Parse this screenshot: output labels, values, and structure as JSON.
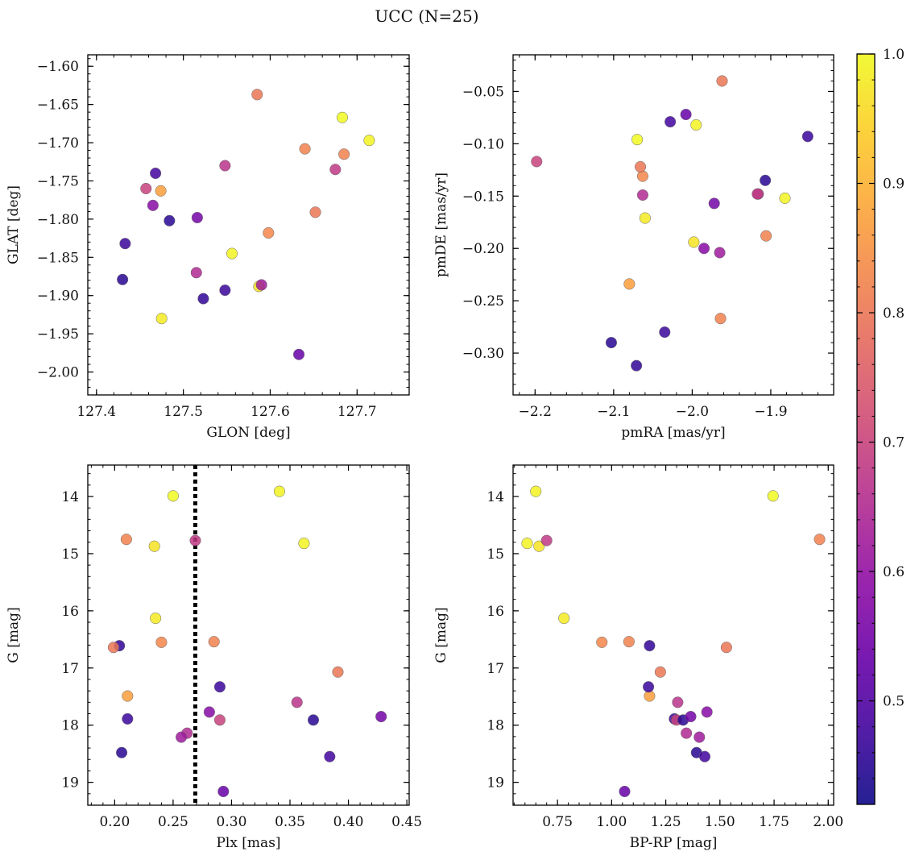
{
  "figure": {
    "title": "UCC (N=25)"
  },
  "colorbar": {
    "colormap": "plasma",
    "vmin": 0.42,
    "vmax": 1.0,
    "ticks": [
      0.5,
      0.6,
      0.7,
      0.8,
      0.9,
      1.0
    ],
    "tick_labels": [
      "0.5",
      "0.6",
      "0.7",
      "0.8",
      "0.9",
      "1.0"
    ]
  },
  "stars": [
    {
      "glon": 127.43,
      "glat": -1.879,
      "pmra": -2.103,
      "pmde": -0.29,
      "plx": 0.206,
      "g": 18.48,
      "bprp": 1.392,
      "prob": 0.45
    },
    {
      "glon": 127.433,
      "glat": -1.832,
      "pmra": -1.853,
      "pmde": -0.093,
      "plx": 0.211,
      "g": 17.89,
      "bprp": 1.29,
      "prob": 0.47
    },
    {
      "glon": 127.457,
      "glat": -1.76,
      "pmra": -2.198,
      "pmde": -0.117,
      "plx": 0.29,
      "g": 17.91,
      "bprp": 1.3,
      "prob": 0.7
    },
    {
      "glon": 127.465,
      "glat": -1.782,
      "pmra": -1.985,
      "pmde": -0.2,
      "plx": 0.281,
      "g": 17.77,
      "bprp": 1.44,
      "prob": 0.58
    },
    {
      "glon": 127.468,
      "glat": -1.74,
      "pmra": -2.028,
      "pmde": -0.079,
      "plx": 0.384,
      "g": 18.55,
      "bprp": 1.43,
      "prob": 0.48
    },
    {
      "glon": 127.474,
      "glat": -1.763,
      "pmra": -2.08,
      "pmde": -0.234,
      "plx": 0.211,
      "g": 17.49,
      "bprp": 1.175,
      "prob": 0.87
    },
    {
      "glon": 127.475,
      "glat": -1.93,
      "pmra": -2.06,
      "pmde": -0.171,
      "plx": 0.235,
      "g": 16.13,
      "bprp": 0.78,
      "prob": 0.98
    },
    {
      "glon": 127.484,
      "glat": -1.802,
      "pmra": -1.907,
      "pmde": -0.135,
      "plx": 0.37,
      "g": 17.91,
      "bprp": 1.33,
      "prob": 0.45
    },
    {
      "glon": 127.515,
      "glat": -1.87,
      "pmra": -2.063,
      "pmde": -0.149,
      "plx": 0.262,
      "g": 18.14,
      "bprp": 1.345,
      "prob": 0.65
    },
    {
      "glon": 127.516,
      "glat": -1.798,
      "pmra": -1.972,
      "pmde": -0.157,
      "plx": 0.428,
      "g": 17.85,
      "bprp": 1.365,
      "prob": 0.55
    },
    {
      "glon": 127.523,
      "glat": -1.904,
      "pmra": -2.071,
      "pmde": -0.312,
      "plx": 0.204,
      "g": 16.61,
      "bprp": 1.175,
      "prob": 0.46
    },
    {
      "glon": 127.548,
      "glat": -1.893,
      "pmra": -2.035,
      "pmde": -0.28,
      "plx": 0.29,
      "g": 17.33,
      "bprp": 1.17,
      "prob": 0.47
    },
    {
      "glon": 127.548,
      "glat": -1.73,
      "pmra": -1.916,
      "pmde": -0.148,
      "plx": 0.356,
      "g": 17.6,
      "bprp": 1.305,
      "prob": 0.67
    },
    {
      "glon": 127.556,
      "glat": -1.845,
      "pmra": -1.995,
      "pmde": -0.082,
      "plx": 0.341,
      "g": 13.91,
      "bprp": 0.65,
      "prob": 0.99
    },
    {
      "glon": 127.585,
      "glat": -1.637,
      "pmra": -1.962,
      "pmde": -0.04,
      "plx": 0.391,
      "g": 17.07,
      "bprp": 1.225,
      "prob": 0.8
    },
    {
      "glon": 127.587,
      "glat": -1.888,
      "pmra": -1.998,
      "pmde": -0.194,
      "plx": 0.234,
      "g": 14.87,
      "bprp": 0.665,
      "prob": 0.97
    },
    {
      "glon": 127.59,
      "glat": -1.886,
      "pmra": -1.965,
      "pmde": -0.204,
      "plx": 0.257,
      "g": 18.21,
      "bprp": 1.405,
      "prob": 0.62
    },
    {
      "glon": 127.598,
      "glat": -1.818,
      "pmra": -2.063,
      "pmde": -0.131,
      "plx": 0.24,
      "g": 16.55,
      "bprp": 0.955,
      "prob": 0.83
    },
    {
      "glon": 127.633,
      "glat": -1.977,
      "pmra": -2.008,
      "pmde": -0.072,
      "plx": 0.293,
      "g": 19.16,
      "bprp": 1.06,
      "prob": 0.53
    },
    {
      "glon": 127.64,
      "glat": -1.708,
      "pmra": -1.964,
      "pmde": -0.267,
      "plx": 0.285,
      "g": 16.54,
      "bprp": 1.08,
      "prob": 0.82
    },
    {
      "glon": 127.652,
      "glat": -1.791,
      "pmra": -2.066,
      "pmde": -0.122,
      "plx": 0.199,
      "g": 16.64,
      "bprp": 1.53,
      "prob": 0.8
    },
    {
      "glon": 127.675,
      "glat": -1.735,
      "pmra": -1.917,
      "pmde": -0.148,
      "plx": 0.269,
      "g": 14.77,
      "bprp": 0.7,
      "prob": 0.68
    },
    {
      "glon": 127.683,
      "glat": -1.667,
      "pmra": -2.07,
      "pmde": -0.096,
      "plx": 0.25,
      "g": 13.99,
      "bprp": 1.745,
      "prob": 1.0
    },
    {
      "glon": 127.685,
      "glat": -1.715,
      "pmra": -1.906,
      "pmde": -0.188,
      "plx": 0.21,
      "g": 14.75,
      "bprp": 1.96,
      "prob": 0.82
    },
    {
      "glon": 127.714,
      "glat": -1.697,
      "pmra": -1.882,
      "pmde": -0.152,
      "plx": 0.362,
      "g": 14.82,
      "bprp": 0.61,
      "prob": 0.99
    }
  ],
  "panels": [
    {
      "id": "glon-glat",
      "x_field": "glon",
      "y_field": "glat",
      "xlabel": "GLON [deg]",
      "ylabel": "GLAT [deg]",
      "xlim": [
        127.39,
        127.76
      ],
      "ylim": [
        -2.03,
        -1.585
      ],
      "y_inverted": false,
      "xticks": [
        127.4,
        127.5,
        127.6,
        127.7
      ],
      "xtick_labels": [
        "127.4",
        "127.5",
        "127.6",
        "127.7"
      ],
      "yticks": [
        -2.0,
        -1.95,
        -1.9,
        -1.85,
        -1.8,
        -1.75,
        -1.7,
        -1.65,
        -1.6
      ],
      "ytick_labels": [
        "−2.00",
        "−1.95",
        "−1.90",
        "−1.85",
        "−1.80",
        "−1.75",
        "−1.70",
        "−1.65",
        "−1.60"
      ],
      "x_minor_step": 0.02,
      "y_minor_step": 0.01
    },
    {
      "id": "pmra-pmde",
      "x_field": "pmra",
      "y_field": "pmde",
      "xlabel": "pmRA [mas/yr]",
      "ylabel": "pmDE [mas/yr]",
      "xlim": [
        -2.228,
        -1.82
      ],
      "ylim": [
        -0.34,
        -0.015
      ],
      "y_inverted": false,
      "xticks": [
        -2.2,
        -2.1,
        -2.0,
        -1.9
      ],
      "xtick_labels": [
        "−2.2",
        "−2.1",
        "−2.0",
        "−1.9"
      ],
      "yticks": [
        -0.3,
        -0.25,
        -0.2,
        -0.15,
        -0.1,
        -0.05
      ],
      "ytick_labels": [
        "−0.30",
        "−0.25",
        "−0.20",
        "−0.15",
        "−0.10",
        "−0.05"
      ],
      "x_minor_step": 0.02,
      "y_minor_step": 0.01
    },
    {
      "id": "plx-g",
      "x_field": "plx",
      "y_field": "g",
      "xlabel": "Plx [mas]",
      "ylabel": "G [mag]",
      "xlim": [
        0.177,
        0.452
      ],
      "ylim": [
        13.45,
        19.4
      ],
      "y_inverted": true,
      "xticks": [
        0.2,
        0.25,
        0.3,
        0.35,
        0.4,
        0.45
      ],
      "xtick_labels": [
        "0.20",
        "0.25",
        "0.30",
        "0.35",
        "0.40",
        "0.45"
      ],
      "yticks": [
        14,
        15,
        16,
        17,
        18,
        19
      ],
      "ytick_labels": [
        "14",
        "15",
        "16",
        "17",
        "18",
        "19"
      ],
      "x_minor_step": 0.01,
      "y_minor_step": 0.2,
      "vline_x": 0.269
    },
    {
      "id": "bprp-g",
      "x_field": "bprp",
      "y_field": "g",
      "xlabel": "BP-RP [mag]",
      "ylabel": "G [mag]",
      "xlim": [
        0.545,
        2.025
      ],
      "ylim": [
        13.45,
        19.4
      ],
      "y_inverted": true,
      "xticks": [
        0.75,
        1.0,
        1.25,
        1.5,
        1.75,
        2.0
      ],
      "xtick_labels": [
        "0.75",
        "1.00",
        "1.25",
        "1.50",
        "1.75",
        "2.00"
      ],
      "yticks": [
        14,
        15,
        16,
        17,
        18,
        19
      ],
      "ytick_labels": [
        "14",
        "15",
        "16",
        "17",
        "18",
        "19"
      ],
      "x_minor_step": 0.05,
      "y_minor_step": 0.2
    }
  ]
}
